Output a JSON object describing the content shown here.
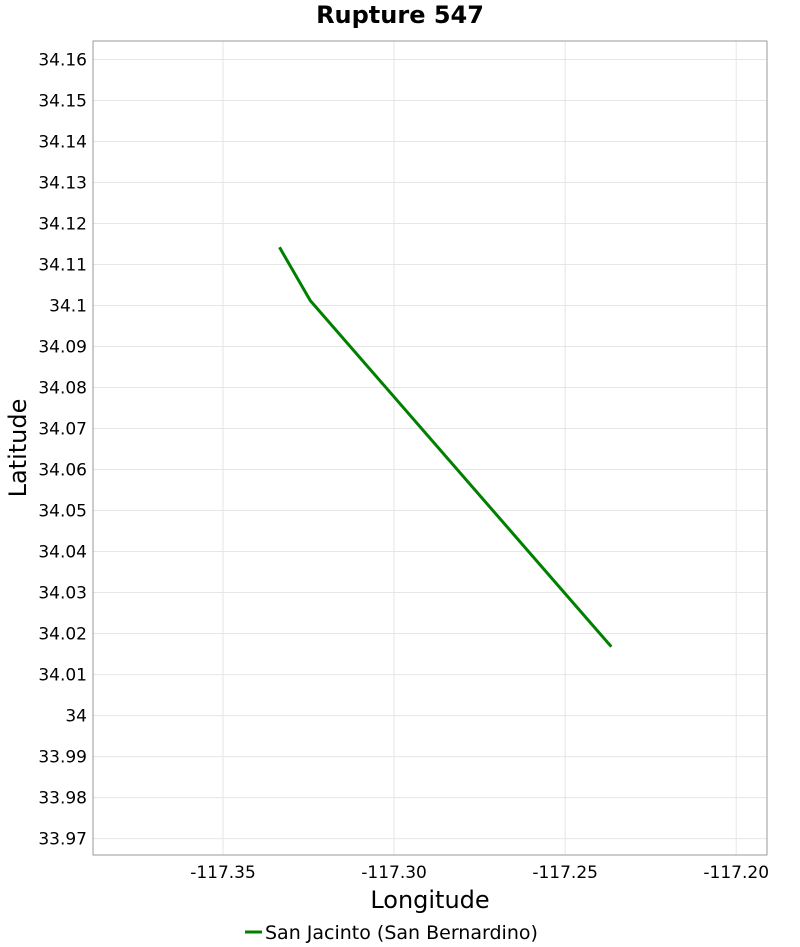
{
  "chart_data": {
    "type": "line",
    "title": "Rupture 547",
    "xlabel": "Longitude",
    "ylabel": "Latitude",
    "xlim": [
      -117.388,
      -117.191
    ],
    "ylim": [
      33.966,
      34.1645
    ],
    "x_ticks": [
      -117.35,
      -117.3,
      -117.25,
      -117.2
    ],
    "x_tick_labels": [
      "-117.35",
      "-117.30",
      "-117.25",
      "-117.20"
    ],
    "y_ticks": [
      34.16,
      34.15,
      34.14,
      34.13,
      34.12,
      34.11,
      34.1,
      34.09,
      34.08,
      34.07,
      34.06,
      34.05,
      34.04,
      34.03,
      34.02,
      34.01,
      34.0,
      33.99,
      33.98,
      33.97
    ],
    "y_tick_labels": [
      "34.16",
      "34.15",
      "34.14",
      "34.13",
      "34.12",
      "34.11",
      "34.1",
      "34.09",
      "34.08",
      "34.07",
      "34.06",
      "34.05",
      "34.04",
      "34.03",
      "34.02",
      "34.01",
      "34",
      "33.99",
      "33.98",
      "33.97"
    ],
    "grid": true,
    "legend_position": "bottom",
    "series": [
      {
        "name": "San Jacinto (San Bernardino)",
        "color": "#008000",
        "x": [
          -117.3335,
          -117.3245,
          -117.2365
        ],
        "y": [
          34.1142,
          34.1012,
          34.0168
        ]
      }
    ]
  }
}
